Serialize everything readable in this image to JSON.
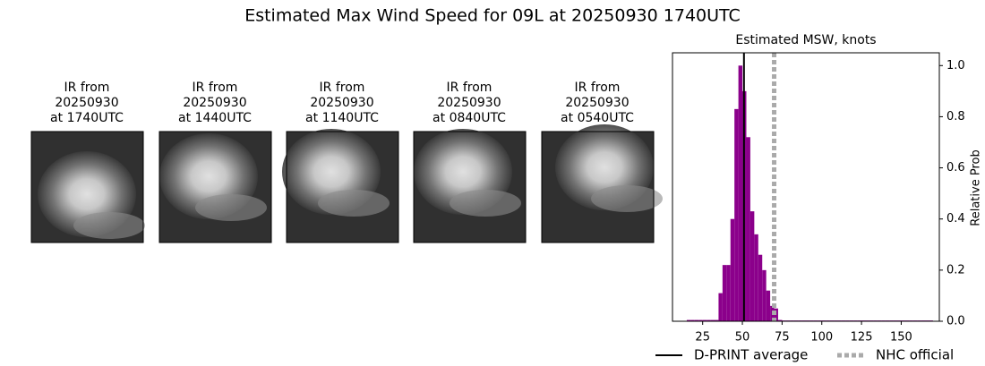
{
  "title": "Estimated Max Wind Speed for 09L at 20250930 1740UTC",
  "panels": [
    {
      "caption": [
        "IR from",
        "20250930",
        "at 1740UTC"
      ]
    },
    {
      "caption": [
        "IR from",
        "20250930",
        "at 1440UTC"
      ]
    },
    {
      "caption": [
        "IR from",
        "20250930",
        "at 1140UTC"
      ]
    },
    {
      "caption": [
        "IR from",
        "20250930",
        "at 0840UTC"
      ]
    },
    {
      "caption": [
        "IR from",
        "20250930",
        "at 0540UTC"
      ]
    }
  ],
  "chart_data": {
    "type": "histogram",
    "title": "Estimated MSW, knots",
    "y_label": "Relative Prob",
    "color": "#8b008b",
    "bins": [
      15,
      17.5,
      20,
      22.5,
      25,
      27.5,
      30,
      32.5,
      35,
      37.5,
      40,
      42.5,
      45,
      47.5,
      50,
      52.5,
      55,
      57.5,
      60,
      62.5,
      65,
      67.5,
      70,
      72.5,
      75,
      77.5,
      80,
      82.5,
      85,
      87.5,
      90,
      92.5,
      95,
      97.5,
      100,
      102.5,
      105,
      107.5,
      110,
      112.5,
      115,
      117.5,
      120,
      122.5,
      125,
      127.5,
      130,
      132.5,
      135,
      137.5,
      140,
      142.5,
      145,
      147.5,
      150,
      152.5,
      155,
      157.5,
      160,
      162.5,
      165,
      167.5,
      170
    ],
    "values": [
      0.005,
      0.005,
      0.005,
      0.005,
      0.005,
      0.005,
      0.005,
      0.005,
      0.11,
      0.22,
      0.22,
      0.4,
      0.83,
      1.0,
      0.9,
      0.72,
      0.43,
      0.34,
      0.26,
      0.2,
      0.12,
      0.06,
      0.05,
      0.005,
      0.003,
      0.003,
      0.003,
      0.003,
      0.003,
      0.003,
      0.003,
      0.003,
      0.003,
      0.003,
      0.003,
      0.003,
      0.003,
      0.003,
      0.003,
      0.003,
      0.003,
      0.003,
      0.003,
      0.003,
      0.003,
      0.003,
      0.003,
      0.003,
      0.003,
      0.003,
      0.003,
      0.003,
      0.003,
      0.003,
      0.003,
      0.003,
      0.003,
      0.003,
      0.003,
      0.003,
      0.003,
      0.003
    ],
    "xlim": [
      6,
      174
    ],
    "xticks": [
      25,
      50,
      75,
      100,
      125,
      150
    ],
    "ylim": [
      0,
      1.05
    ],
    "yticks": [
      {
        "value": 0,
        "label": "0.0"
      },
      0.2,
      0.4,
      0.6,
      0.8,
      {
        "value": 1,
        "label": "1.0"
      }
    ],
    "lines": [
      {
        "name": "D-PRINT average",
        "value": 51,
        "color": "#000000",
        "style": "solid"
      },
      {
        "name": "NHC official",
        "value": 70,
        "color": "#aaaaaa",
        "style": "dotted"
      }
    ]
  }
}
